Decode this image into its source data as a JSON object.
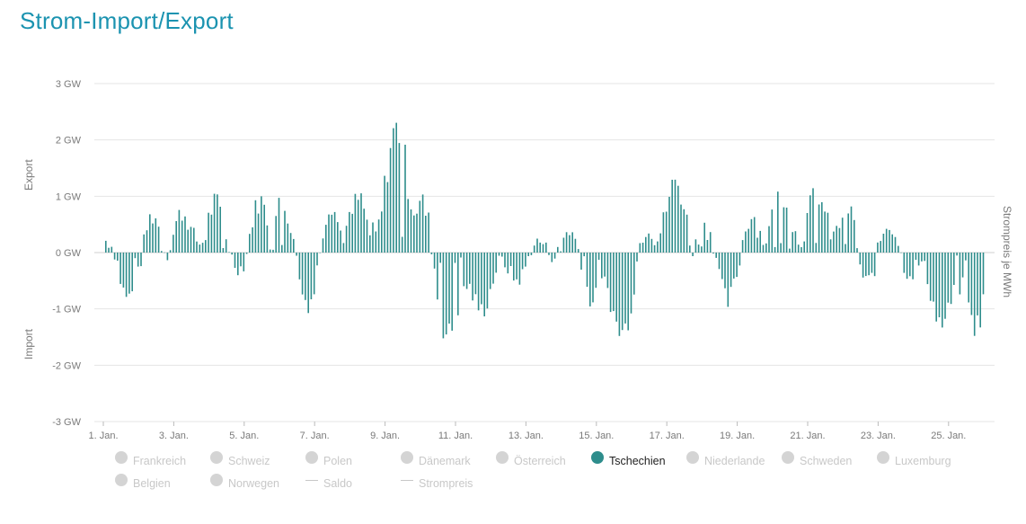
{
  "title": "Strom-Import/Export",
  "axis_side_labels": {
    "export": "Export",
    "import": "Import",
    "right": "Strompreis je MWh"
  },
  "legend": [
    {
      "label": "Frankreich",
      "kind": "dot",
      "active": false
    },
    {
      "label": "Schweiz",
      "kind": "dot",
      "active": false
    },
    {
      "label": "Polen",
      "kind": "dot",
      "active": false
    },
    {
      "label": "Dänemark",
      "kind": "dot",
      "active": false
    },
    {
      "label": "Österreich",
      "kind": "dot",
      "active": false
    },
    {
      "label": "Tschechien",
      "kind": "dot",
      "active": true
    },
    {
      "label": "Niederlande",
      "kind": "dot",
      "active": false
    },
    {
      "label": "Schweden",
      "kind": "dot",
      "active": false
    },
    {
      "label": "Luxemburg",
      "kind": "dot",
      "active": false
    },
    {
      "label": "Belgien",
      "kind": "dot",
      "active": false
    },
    {
      "label": "Norwegen",
      "kind": "dot",
      "active": false
    },
    {
      "label": "Saldo",
      "kind": "line",
      "active": false
    },
    {
      "label": "Strompreis",
      "kind": "line",
      "active": false
    }
  ],
  "colors": {
    "bar": "#2e8d8c",
    "title": "#1b93b0",
    "grid": "#e4e4e4",
    "inactive": "#d4d4d4"
  },
  "chart_data": {
    "type": "bar",
    "series": [
      {
        "name": "Tschechien"
      }
    ],
    "yticks": [
      "3 GW",
      "2 GW",
      "1 GW",
      "0 GW",
      "-1 GW",
      "-2 GW",
      "-3 GW"
    ],
    "ylim": [
      -3,
      3
    ],
    "xticks": [
      "1. Jan.",
      "3. Jan.",
      "5. Jan.",
      "7. Jan.",
      "9. Jan.",
      "11. Jan.",
      "13. Jan.",
      "15. Jan.",
      "17. Jan.",
      "19. Jan.",
      "21. Jan.",
      "23. Jan.",
      "25. Jan."
    ],
    "xlim_days": [
      1,
      26.5
    ],
    "grid": true,
    "bar_sampling_hours": 2,
    "daily_profile": [
      {
        "day": 1,
        "level": 0.25,
        "amp": 0.15
      },
      {
        "day": 1.5,
        "level": -0.6,
        "amp": 0.5
      },
      {
        "day": 2,
        "level": -0.3,
        "amp": 0.3
      },
      {
        "day": 2.5,
        "level": 0.6,
        "amp": 0.6
      },
      {
        "day": 3,
        "level": 0.4,
        "amp": 0.5
      },
      {
        "day": 3.5,
        "level": 0.35,
        "amp": 0.3
      },
      {
        "day": 4,
        "level": 0.7,
        "amp": 0.6
      },
      {
        "day": 4.5,
        "level": 0.2,
        "amp": 0.3
      },
      {
        "day": 5,
        "level": -0.2,
        "amp": 0.3
      },
      {
        "day": 5.5,
        "level": 0.9,
        "amp": 0.5
      },
      {
        "day": 6,
        "level": 0.9,
        "amp": 0.5
      },
      {
        "day": 6.5,
        "level": -0.4,
        "amp": 0.4
      },
      {
        "day": 7,
        "level": -0.6,
        "amp": 0.5
      },
      {
        "day": 7.5,
        "level": 0.9,
        "amp": 0.5
      },
      {
        "day": 8,
        "level": 0.6,
        "amp": 0.5
      },
      {
        "day": 8.5,
        "level": 0.4,
        "amp": 0.6
      },
      {
        "day": 9,
        "level": 1.3,
        "amp": 0.7
      },
      {
        "day": 9.5,
        "level": 1.9,
        "amp": 0.7
      },
      {
        "day": 10,
        "level": 0.9,
        "amp": 0.6
      },
      {
        "day": 10.5,
        "level": -1.0,
        "amp": 0.5
      },
      {
        "day": 11,
        "level": -1.1,
        "amp": 0.5
      },
      {
        "day": 11.5,
        "level": -0.8,
        "amp": 0.4
      },
      {
        "day": 12,
        "level": -0.6,
        "amp": 0.4
      },
      {
        "day": 12.5,
        "level": -0.3,
        "amp": 0.3
      },
      {
        "day": 13,
        "level": -0.2,
        "amp": 0.3
      },
      {
        "day": 13.5,
        "level": 0.15,
        "amp": 0.2
      },
      {
        "day": 14,
        "level": 0.2,
        "amp": 0.4
      },
      {
        "day": 14.5,
        "level": 0.0,
        "amp": 0.3
      },
      {
        "day": 15,
        "level": -0.8,
        "amp": 0.5
      },
      {
        "day": 15.5,
        "level": -1.2,
        "amp": 0.5
      },
      {
        "day": 16,
        "level": -0.8,
        "amp": 0.5
      },
      {
        "day": 16.5,
        "level": 0.5,
        "amp": 0.5
      },
      {
        "day": 17,
        "level": 0.9,
        "amp": 0.5
      },
      {
        "day": 17.5,
        "level": 0.7,
        "amp": 0.6
      },
      {
        "day": 18,
        "level": 0.4,
        "amp": 0.5
      },
      {
        "day": 18.5,
        "level": -0.6,
        "amp": 0.6
      },
      {
        "day": 19,
        "level": -0.3,
        "amp": 0.4
      },
      {
        "day": 19.5,
        "level": 0.6,
        "amp": 0.5
      },
      {
        "day": 20,
        "level": 0.7,
        "amp": 0.5
      },
      {
        "day": 20.5,
        "level": 0.6,
        "amp": 0.5
      },
      {
        "day": 21,
        "level": 0.7,
        "amp": 0.5
      },
      {
        "day": 21.5,
        "level": 0.6,
        "amp": 0.5
      },
      {
        "day": 22,
        "level": 0.8,
        "amp": 0.5
      },
      {
        "day": 22.5,
        "level": -0.4,
        "amp": 0.5
      },
      {
        "day": 23,
        "level": 0.1,
        "amp": 0.4
      },
      {
        "day": 23.5,
        "level": 0.3,
        "amp": 0.3
      },
      {
        "day": 24,
        "level": -0.3,
        "amp": 0.4
      },
      {
        "day": 24.5,
        "level": -0.8,
        "amp": 0.4
      },
      {
        "day": 25,
        "level": -1.0,
        "amp": 0.5
      },
      {
        "day": 25.5,
        "level": -0.9,
        "amp": 0.5
      },
      {
        "day": 26,
        "level": -0.8,
        "amp": 0.6
      }
    ]
  }
}
